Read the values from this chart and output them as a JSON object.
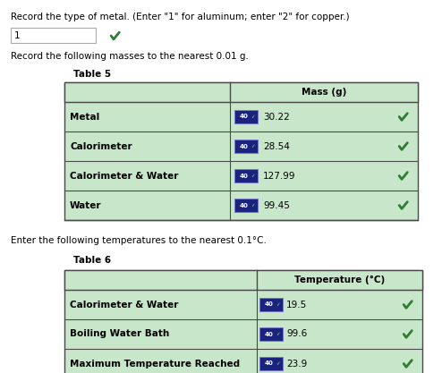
{
  "bg_color": "#ffffff",
  "text_color": "#000000",
  "header_text": "Record the type of metal. (Enter \"1\" for aluminum; enter \"2\" for copper.)",
  "metal_type_value": "1",
  "mass_instruction": "Record the following masses to the nearest 0.01 g.",
  "table5_title": "Table 5",
  "table5_header": "Mass (g)",
  "table5_rows": [
    "Metal",
    "Calorimeter",
    "Calorimeter & Water",
    "Water"
  ],
  "table5_values": [
    "30.22",
    "28.54",
    "127.99",
    "99.45"
  ],
  "temp_instruction": "Enter the following temperatures to the nearest 0.1°C.",
  "table6_title": "Table 6",
  "table6_header": "Temperature (°C)",
  "table6_rows": [
    "Calorimeter & Water",
    "Boiling Water Bath",
    "Maximum Temperature Reached"
  ],
  "table6_values": [
    "19.5",
    "99.6",
    "23.9"
  ],
  "cell_bg": "#c8e6c9",
  "header_bg": "#c8e6c9",
  "input_bg": "#1a237e",
  "input_text": "#ffffff",
  "checkmark_color": "#2e7d32",
  "border_color": "#4a4a4a",
  "fig_w": 4.94,
  "fig_h": 4.17,
  "dpi": 100
}
